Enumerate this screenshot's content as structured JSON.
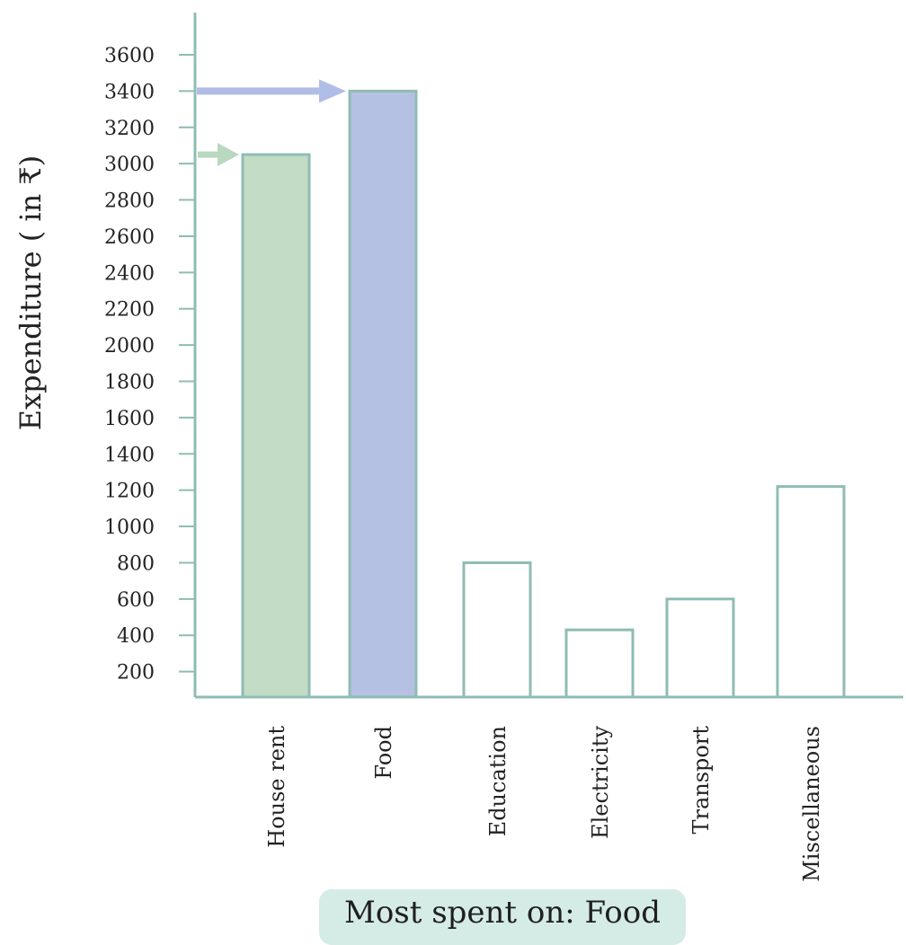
{
  "chart_data": {
    "type": "bar",
    "categories": [
      "House rent",
      "Food",
      "Education",
      "Electricity",
      "Transport",
      "Miscellaneous"
    ],
    "values": [
      3050,
      3400,
      800,
      430,
      600,
      1220
    ],
    "ylabel": "Expenditure ( in ₹)",
    "xlabel": "",
    "yticks": [
      200,
      400,
      600,
      800,
      1000,
      1200,
      1400,
      1600,
      1800,
      2000,
      2200,
      2400,
      2600,
      2800,
      3000,
      3200,
      3400,
      3600
    ],
    "ylim": [
      0,
      3600
    ],
    "grid": false,
    "highlights": [
      {
        "category": "House rent",
        "color": "#c2dcc5",
        "arrow_color": "#b9d8c0"
      },
      {
        "category": "Food",
        "color": "#b5c1e2",
        "arrow_color": "#b0bde6"
      }
    ],
    "bar_outline_color": "#8fbcb3",
    "axis_color": "#8fbcb3"
  },
  "summary": {
    "text": "Most spent on: Food"
  }
}
